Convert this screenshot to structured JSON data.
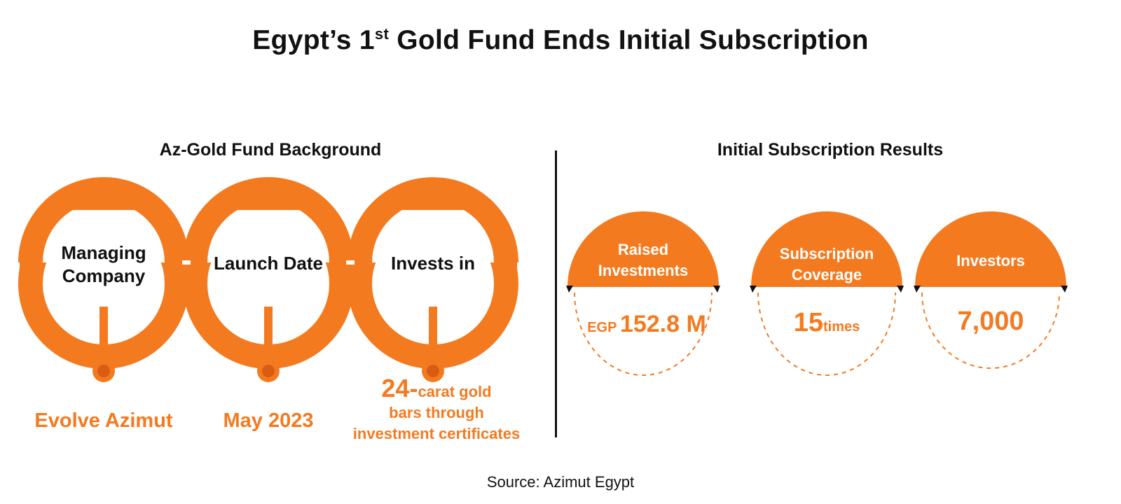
{
  "title": {
    "main": "Egypt’s 1",
    "sup": "st",
    "rest": " Gold Fund Ends Initial Subscription"
  },
  "left": {
    "heading": "Az-Gold Fund Background",
    "items": [
      {
        "label_line1": "Managing",
        "label_line2": "Company",
        "value": "Evolve Azimut"
      },
      {
        "label_line1": "Launch Date",
        "label_line2": "",
        "value": "May 2023"
      },
      {
        "label_line1": "Invests in",
        "label_line2": "",
        "value_big": "24-",
        "value_line1": "carat gold",
        "value_line2": "bars through",
        "value_line3": "investment certificates"
      }
    ]
  },
  "right": {
    "heading": "Initial Subscription Results",
    "items": [
      {
        "head_line1": "Raised",
        "head_line2": "Investments",
        "prefix": "EGP",
        "value": "152.8 M",
        "suffix": ""
      },
      {
        "head_line1": "Subscription",
        "head_line2": "Coverage",
        "prefix": "",
        "value": "15",
        "suffix": "times"
      },
      {
        "head_line1": "Investors",
        "head_line2": "",
        "prefix": "",
        "value": "7,000",
        "suffix": ""
      }
    ]
  },
  "source": "Source: Azimut Egypt",
  "colors": {
    "accent": "#f47a20",
    "dark": "#111111",
    "marker_inner": "#d85d12"
  }
}
